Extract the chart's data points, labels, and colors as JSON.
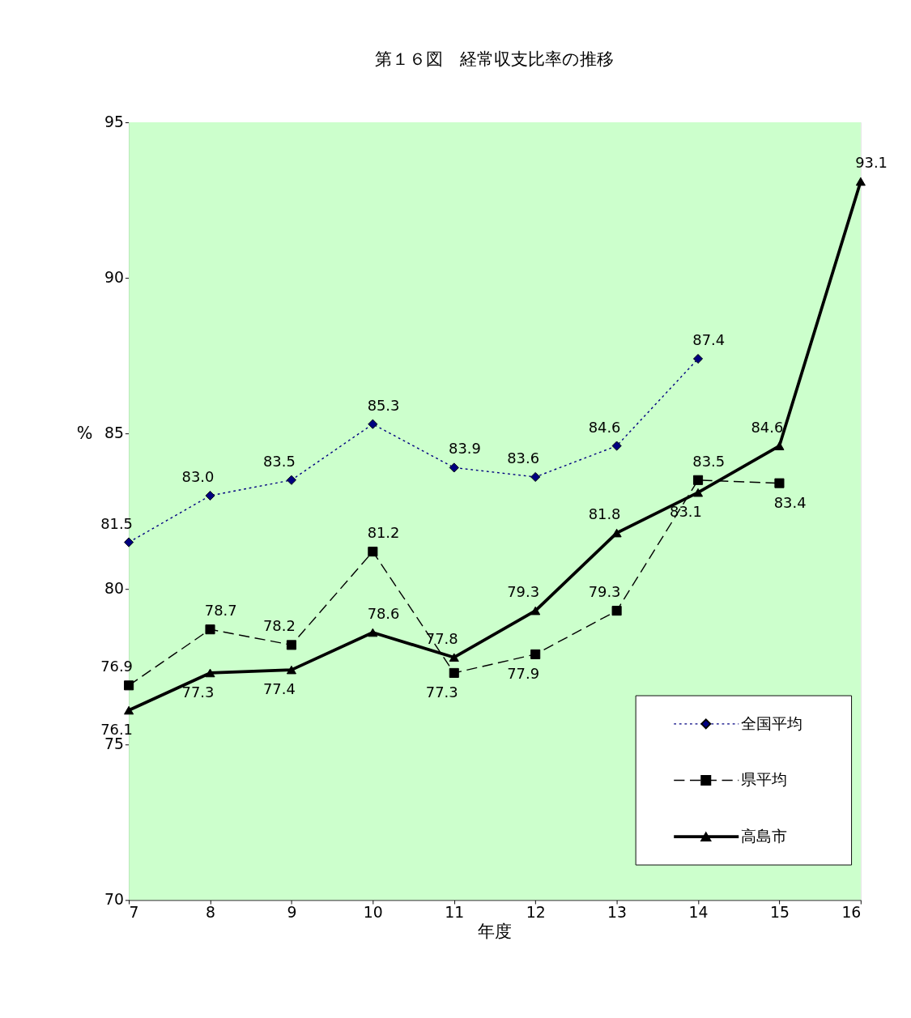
{
  "chart_data": {
    "type": "line",
    "title": "第１６図　経常収支比率の推移",
    "xlabel": "年度",
    "ylabel": "%",
    "x": [
      7,
      8,
      9,
      10,
      11,
      12,
      13,
      14,
      15,
      16
    ],
    "xlim": [
      7,
      16
    ],
    "xticks": [
      7,
      8,
      9,
      10,
      11,
      12,
      13,
      14,
      15,
      16
    ],
    "ylim": [
      70,
      95
    ],
    "yticks": [
      70,
      75,
      80,
      85,
      90,
      95
    ],
    "series": [
      {
        "name": "全国平均",
        "color": "#000080",
        "marker": "diamond",
        "line_style": "dotted",
        "values": [
          81.5,
          83.0,
          83.5,
          85.3,
          83.9,
          83.6,
          84.6,
          87.4,
          null,
          null
        ],
        "value_labels": [
          "81.5",
          "83.0",
          "83.5",
          "85.3",
          "83.9",
          "83.6",
          "84.6",
          "87.4",
          null,
          null
        ]
      },
      {
        "name": "県平均",
        "color": "#000000",
        "marker": "square",
        "line_style": "dashed",
        "values": [
          76.9,
          78.7,
          78.2,
          81.2,
          77.3,
          77.9,
          79.3,
          83.5,
          83.4,
          null
        ],
        "value_labels": [
          "76.9",
          "78.7",
          "78.2",
          "81.2",
          "77.3",
          "77.9",
          "79.3",
          "83.5",
          "83.4",
          null
        ]
      },
      {
        "name": "高島市",
        "color": "#000000",
        "marker": "triangle",
        "line_style": "solid",
        "values": [
          76.1,
          77.3,
          77.4,
          78.6,
          77.8,
          79.3,
          81.8,
          83.1,
          84.6,
          93.1
        ],
        "value_labels": [
          "76.1",
          "77.3",
          "77.4",
          "78.6",
          "77.8",
          "79.3",
          "81.8",
          "83.1",
          "84.6",
          "93.1"
        ]
      }
    ],
    "legend": "bottom right",
    "grid": false
  }
}
